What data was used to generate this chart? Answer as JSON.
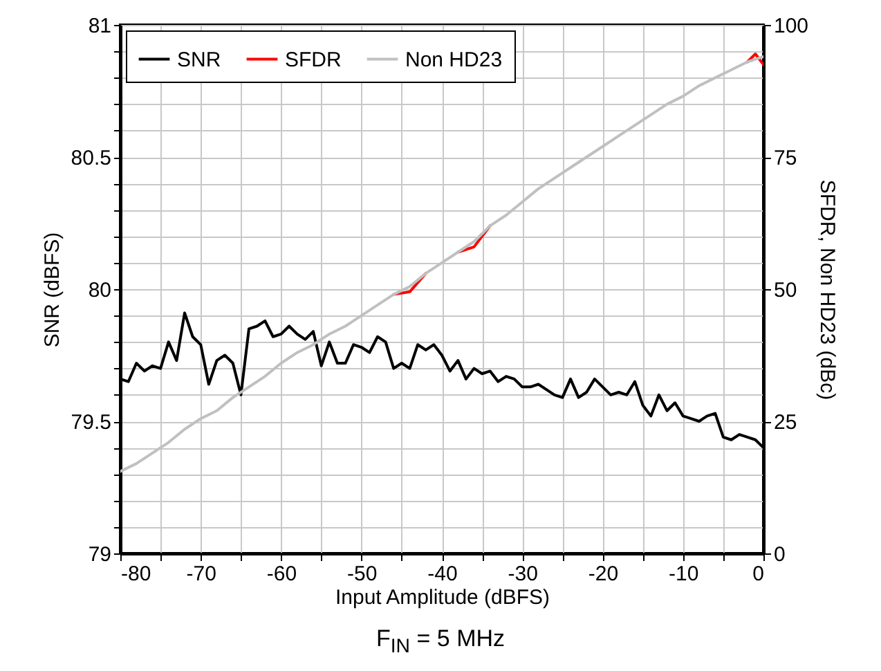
{
  "chart_data": {
    "type": "line",
    "xlabel": "Input Amplitude (dBFS)",
    "ylabel": "SNR (dBFS)",
    "y2label": "SFDR, Non HD23 (dBc)",
    "annotations": [
      "F$_{IN}$ = 5 MHz"
    ],
    "xlim": [
      -80,
      0
    ],
    "xticks": [
      -80,
      {
        "value": -75,
        "label": null
      },
      -70,
      {
        "value": -65,
        "label": null
      },
      -60,
      {
        "value": -55,
        "label": null
      },
      -50,
      {
        "value": -45,
        "label": null
      },
      -40,
      {
        "value": -35,
        "label": null
      },
      -30,
      {
        "value": -25,
        "label": null
      },
      -20,
      {
        "value": -15,
        "label": null
      },
      -10,
      {
        "value": -5,
        "label": null
      },
      0
    ],
    "ylim": [
      79,
      81
    ],
    "yticks": [
      79,
      {
        "value": 79.1,
        "label": null
      },
      {
        "value": 79.2,
        "label": null
      },
      {
        "value": 79.3,
        "label": null
      },
      {
        "value": 79.4,
        "label": null
      },
      79.5,
      {
        "value": 79.6,
        "label": null
      },
      {
        "value": 79.7,
        "label": null
      },
      {
        "value": 79.8,
        "label": null
      },
      {
        "value": 79.9,
        "label": null
      },
      80,
      {
        "value": 80.1,
        "label": null
      },
      {
        "value": 80.2,
        "label": null
      },
      {
        "value": 80.3,
        "label": null
      },
      {
        "value": 80.4,
        "label": null
      },
      80.5,
      {
        "value": 80.6,
        "label": null
      },
      {
        "value": 80.7,
        "label": null
      },
      {
        "value": 80.8,
        "label": null
      },
      {
        "value": 80.9,
        "label": null
      },
      81
    ],
    "y2lim": [
      0,
      100
    ],
    "y2ticks": [
      0,
      25,
      50,
      75,
      100
    ],
    "grid": true,
    "legend": "top left",
    "line_style": "solid",
    "series": [
      {
        "name": "SNR",
        "color": "#000000",
        "x": [
          -80,
          -79,
          -78,
          -77,
          -76,
          -75,
          -74,
          -73,
          -72,
          -71,
          -70,
          -69,
          -68,
          -67,
          -66,
          -65,
          -64,
          -63,
          -62,
          -61,
          -60,
          -59,
          -58,
          -57,
          -56,
          -55,
          -54,
          -53,
          -52,
          -51,
          -50,
          -49,
          -48,
          -47,
          -46,
          -45,
          -44,
          -43,
          -42,
          -41,
          -40,
          -39,
          -38,
          -37,
          -36,
          -35,
          -34,
          -33,
          -32,
          -31,
          -30,
          -29,
          -28,
          -27,
          -26,
          -25,
          -24,
          -23,
          -22,
          -21,
          -20,
          -19,
          -18,
          -17,
          -16,
          -15,
          -14,
          -13,
          -12,
          -11,
          -10,
          -9,
          -8,
          -7,
          -6,
          -5,
          -4,
          -3,
          -2,
          -1,
          0
        ],
        "values": [
          79.66,
          79.65,
          79.72,
          79.69,
          79.71,
          79.7,
          79.8,
          79.73,
          79.91,
          79.82,
          79.79,
          79.64,
          79.73,
          79.75,
          79.72,
          79.6,
          79.85,
          79.86,
          79.88,
          79.82,
          79.83,
          79.86,
          79.83,
          79.81,
          79.84,
          79.71,
          79.8,
          79.72,
          79.72,
          79.79,
          79.78,
          79.76,
          79.82,
          79.8,
          79.7,
          79.72,
          79.7,
          79.79,
          79.77,
          79.79,
          79.75,
          79.69,
          79.73,
          79.66,
          79.7,
          79.68,
          79.69,
          79.65,
          79.67,
          79.66,
          79.63,
          79.63,
          79.64,
          79.62,
          79.6,
          79.59,
          79.66,
          79.59,
          79.61,
          79.66,
          79.63,
          79.6,
          79.61,
          79.6,
          79.65,
          79.56,
          79.52,
          79.6,
          79.54,
          79.57,
          79.52,
          79.51,
          79.5,
          79.52,
          79.53,
          79.44,
          79.43,
          79.45,
          79.44,
          79.43,
          79.4
        ]
      },
      {
        "name": "SFDR",
        "color": "#ff0000",
        "axis": "y2",
        "x": [
          -46,
          -44,
          -42,
          -40,
          -38,
          -36,
          -34,
          -32,
          -30,
          -28,
          -26,
          -24,
          -22,
          -20,
          -18,
          -16,
          -14,
          -12,
          -10,
          -8,
          -6,
          -4,
          -2,
          -1,
          0
        ],
        "values": [
          49,
          49.5,
          53,
          null,
          57,
          58,
          62,
          null,
          null,
          null,
          null,
          null,
          null,
          null,
          null,
          null,
          null,
          null,
          null,
          null,
          null,
          null,
          93,
          94.5,
          92.5
        ]
      },
      {
        "name": "Non HD23",
        "color": "#c0c0c0",
        "axis": "y2",
        "x": [
          -80,
          -78,
          -76,
          -74,
          -72,
          -70,
          -68,
          -66,
          -64,
          -62,
          -60,
          -58,
          -56,
          -54,
          -52,
          -50,
          -48,
          -46,
          -44,
          -42,
          -40,
          -38,
          -36,
          -34,
          -32,
          -30,
          -28,
          -26,
          -24,
          -22,
          -20,
          -18,
          -16,
          -14,
          -12,
          -10,
          -8,
          -6,
          -4,
          -2,
          -1,
          0
        ],
        "values": [
          15.5,
          17,
          19,
          21,
          23.5,
          25.5,
          27,
          29.5,
          31.5,
          33.5,
          36,
          38,
          39.5,
          41.5,
          43,
          45,
          47,
          49,
          50.5,
          53,
          55,
          57,
          59,
          62,
          64,
          66.5,
          69,
          71,
          73,
          75,
          77,
          79,
          81,
          83,
          85,
          86.5,
          88.5,
          90,
          91.5,
          93,
          93.5,
          94
        ]
      }
    ]
  }
}
